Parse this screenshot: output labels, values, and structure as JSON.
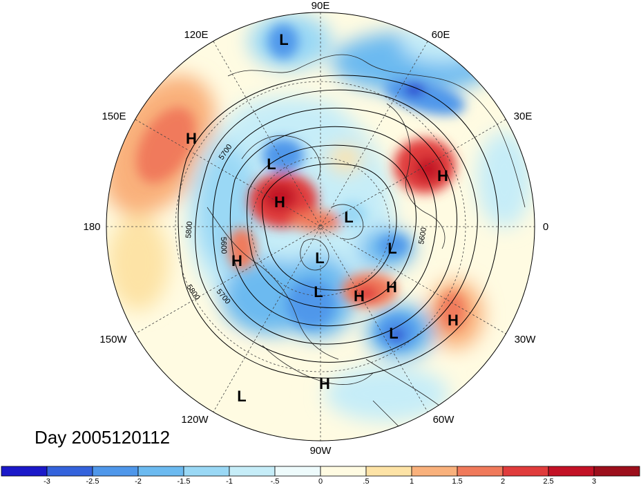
{
  "title": "Day 2005120112",
  "longitude_labels": {
    "lon_90e": "90E",
    "lon_60e": "60E",
    "lon_120e": "120E",
    "lon_30e": "30E",
    "lon_150e": "150E",
    "lon_0": "0",
    "lon_180": "180",
    "lon_30w": "30W",
    "lon_150w": "150W",
    "lon_60w": "60W",
    "lon_120w": "120W",
    "lon_90w": "90W"
  },
  "contour_labels": [
    "5700",
    "5800",
    "5600",
    "5800",
    "5700",
    "5600"
  ],
  "pressure_systems": [
    "L",
    "H",
    "L",
    "H",
    "H",
    "H",
    "L",
    "L",
    "L",
    "H",
    "L",
    "H",
    "H",
    "L",
    "L",
    "H"
  ],
  "colorbar": {
    "tick_labels": [
      "-3",
      "-2.5",
      "-2",
      "-1.5",
      "-1",
      "-.5",
      "0",
      ".5",
      "1",
      "1.5",
      "2",
      "2.5",
      "3"
    ],
    "colors": [
      "#1b19c9",
      "#3463dc",
      "#4f97ea",
      "#6cbaf0",
      "#9ad8f5",
      "#c6edf8",
      "#eefbfc",
      "#fffbe2",
      "#fde3a6",
      "#f9b17c",
      "#f07a5b",
      "#e03c3c",
      "#c31226",
      "#9c0f1c"
    ]
  }
}
